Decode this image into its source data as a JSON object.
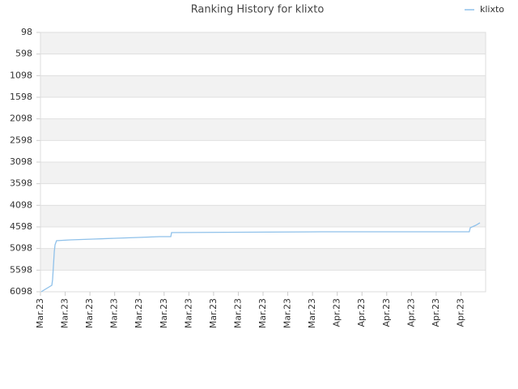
{
  "chart_data": {
    "type": "line",
    "title": "Ranking History for klixto",
    "series": [
      {
        "name": "klixto",
        "color": "#8fc1ea",
        "x": [
          0.03,
          0.46,
          0.49,
          0.52,
          0.56,
          0.59,
          0.65,
          1.21,
          2.13,
          3.04,
          3.96,
          4.81,
          5.27,
          5.3,
          11.35,
          17.34,
          17.38,
          17.6,
          17.77
        ],
        "values": [
          6098,
          5948,
          5816,
          5536,
          5161,
          5011,
          4917,
          4898,
          4879,
          4861,
          4842,
          4823,
          4823,
          4729,
          4711,
          4711,
          4617,
          4561,
          4504
        ]
      }
    ],
    "xlim": [
      0,
      18
    ],
    "xticks": [
      {
        "value": 0,
        "label": "Mar.23"
      },
      {
        "value": 1,
        "label": "Mar.23"
      },
      {
        "value": 2,
        "label": "Mar.23"
      },
      {
        "value": 3,
        "label": "Mar.23"
      },
      {
        "value": 4,
        "label": "Mar.23"
      },
      {
        "value": 5,
        "label": "Mar.23"
      },
      {
        "value": 6,
        "label": "Mar.23"
      },
      {
        "value": 7,
        "label": "Mar.23"
      },
      {
        "value": 8,
        "label": "Mar.23"
      },
      {
        "value": 9,
        "label": "Mar.23"
      },
      {
        "value": 10,
        "label": "Mar.23"
      },
      {
        "value": 11,
        "label": "Mar.23"
      },
      {
        "value": 12,
        "label": "Apr.23"
      },
      {
        "value": 13,
        "label": "Apr.23"
      },
      {
        "value": 14,
        "label": "Apr.23"
      },
      {
        "value": 15,
        "label": "Apr.23"
      },
      {
        "value": 16,
        "label": "Apr.23"
      },
      {
        "value": 17,
        "label": "Apr.23"
      }
    ],
    "ylim": [
      6098,
      98
    ],
    "yticks": [
      98,
      598,
      1098,
      1598,
      2098,
      2598,
      3098,
      3598,
      4098,
      4598,
      5098,
      5598,
      6098
    ],
    "grid": true,
    "legend": "top-right"
  }
}
